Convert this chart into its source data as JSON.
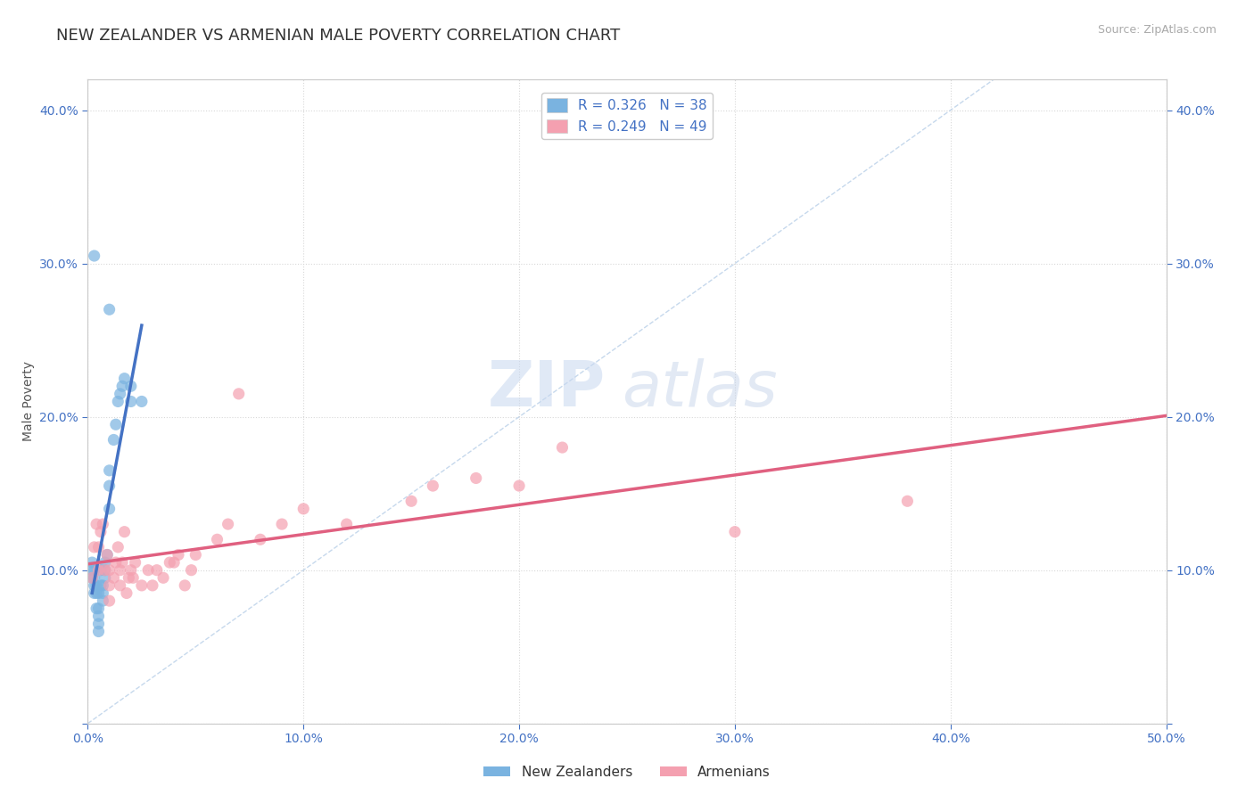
{
  "title": "NEW ZEALANDER VS ARMENIAN MALE POVERTY CORRELATION CHART",
  "source": "Source: ZipAtlas.com",
  "xlabel": "",
  "ylabel": "Male Poverty",
  "xlim": [
    0.0,
    0.5
  ],
  "ylim": [
    0.0,
    0.42
  ],
  "xticks": [
    0.0,
    0.1,
    0.2,
    0.3,
    0.4,
    0.5
  ],
  "yticks": [
    0.0,
    0.1,
    0.2,
    0.3,
    0.4
  ],
  "xtick_labels": [
    "0.0%",
    "10.0%",
    "20.0%",
    "30.0%",
    "40.0%",
    "50.0%"
  ],
  "ytick_labels": [
    "",
    "10.0%",
    "20.0%",
    "30.0%",
    "40.0%"
  ],
  "nz_color": "#7ab3e0",
  "arm_color": "#f4a0b0",
  "nz_line_color": "#4472c4",
  "arm_line_color": "#e06080",
  "diag_color": "#b8cfe8",
  "R_nz": 0.326,
  "N_nz": 38,
  "R_arm": 0.249,
  "N_arm": 49,
  "legend_label_nz": "New Zealanders",
  "legend_label_arm": "Armenians",
  "nz_x": [
    0.002,
    0.002,
    0.002,
    0.003,
    0.003,
    0.003,
    0.003,
    0.004,
    0.004,
    0.004,
    0.005,
    0.005,
    0.005,
    0.005,
    0.005,
    0.006,
    0.006,
    0.007,
    0.007,
    0.007,
    0.008,
    0.008,
    0.008,
    0.009,
    0.01,
    0.01,
    0.01,
    0.012,
    0.013,
    0.014,
    0.015,
    0.016,
    0.017,
    0.02,
    0.02,
    0.025,
    0.01,
    0.003
  ],
  "nz_y": [
    0.095,
    0.1,
    0.105,
    0.085,
    0.09,
    0.095,
    0.1,
    0.075,
    0.085,
    0.09,
    0.06,
    0.065,
    0.07,
    0.075,
    0.085,
    0.09,
    0.1,
    0.08,
    0.085,
    0.09,
    0.095,
    0.1,
    0.105,
    0.11,
    0.14,
    0.155,
    0.165,
    0.185,
    0.195,
    0.21,
    0.215,
    0.22,
    0.225,
    0.21,
    0.22,
    0.21,
    0.27,
    0.305
  ],
  "arm_x": [
    0.002,
    0.003,
    0.004,
    0.005,
    0.005,
    0.006,
    0.007,
    0.008,
    0.009,
    0.01,
    0.01,
    0.01,
    0.012,
    0.013,
    0.014,
    0.015,
    0.015,
    0.016,
    0.017,
    0.018,
    0.019,
    0.02,
    0.021,
    0.022,
    0.025,
    0.028,
    0.03,
    0.032,
    0.035,
    0.038,
    0.04,
    0.042,
    0.045,
    0.048,
    0.05,
    0.06,
    0.065,
    0.07,
    0.08,
    0.09,
    0.1,
    0.12,
    0.15,
    0.16,
    0.18,
    0.2,
    0.22,
    0.3,
    0.38
  ],
  "arm_y": [
    0.095,
    0.115,
    0.13,
    0.1,
    0.115,
    0.125,
    0.13,
    0.1,
    0.11,
    0.08,
    0.09,
    0.1,
    0.095,
    0.105,
    0.115,
    0.09,
    0.1,
    0.105,
    0.125,
    0.085,
    0.095,
    0.1,
    0.095,
    0.105,
    0.09,
    0.1,
    0.09,
    0.1,
    0.095,
    0.105,
    0.105,
    0.11,
    0.09,
    0.1,
    0.11,
    0.12,
    0.13,
    0.215,
    0.12,
    0.13,
    0.14,
    0.13,
    0.145,
    0.155,
    0.16,
    0.155,
    0.18,
    0.125,
    0.145
  ],
  "watermark_zip": "ZIP",
  "watermark_atlas": "atlas",
  "background_color": "#ffffff",
  "grid_color": "#d8d8d8",
  "title_fontsize": 13,
  "axis_label_fontsize": 10,
  "tick_fontsize": 10,
  "legend_fontsize": 11
}
